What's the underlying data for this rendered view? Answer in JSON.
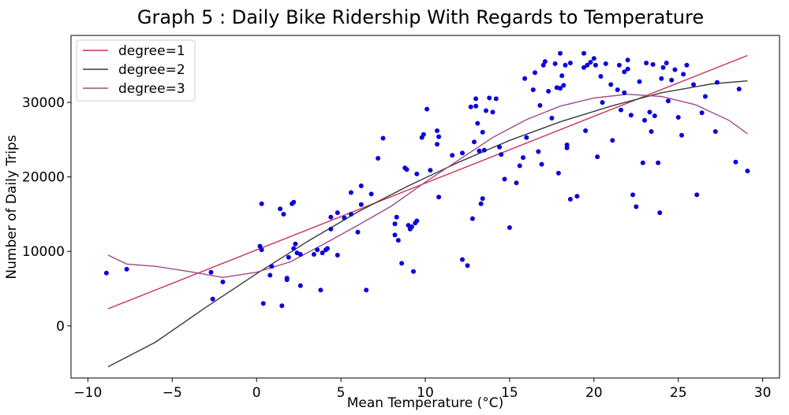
{
  "chart_data": {
    "type": "scatter",
    "title": "Graph 5 : Daily Bike Ridership With Regards to Temperature",
    "xlabel": "Mean Temperature (°C)",
    "ylabel": "Number of Daily Trips",
    "xlim": [
      -11,
      31
    ],
    "ylim": [
      -7000,
      39000
    ],
    "xticks": [
      -10,
      -5,
      0,
      5,
      10,
      15,
      20,
      25,
      30
    ],
    "yticks": [
      0,
      10000,
      20000,
      30000
    ],
    "xtick_labels": [
      "−10",
      "−5",
      "0",
      "5",
      "10",
      "15",
      "20",
      "25",
      "30"
    ],
    "ytick_labels": [
      "0",
      "10000",
      "20000",
      "30000"
    ],
    "grid": false,
    "legend_position": "top-left",
    "colors": {
      "points": "#0b00d9",
      "degree1": "#c8334f",
      "degree2": "#3a3a3a",
      "degree3": "#a04a8a"
    },
    "points": [
      [
        -8.9,
        7100
      ],
      [
        -7.7,
        7600
      ],
      [
        -2.7,
        7200
      ],
      [
        -2.6,
        3600
      ],
      [
        -2.0,
        5900
      ],
      [
        0.2,
        10700
      ],
      [
        0.3,
        16400
      ],
      [
        0.3,
        10200
      ],
      [
        0.4,
        3000
      ],
      [
        0.8,
        6800
      ],
      [
        0.9,
        8000
      ],
      [
        1.4,
        15700
      ],
      [
        1.5,
        2700
      ],
      [
        1.6,
        15000
      ],
      [
        1.8,
        6400
      ],
      [
        1.8,
        6200
      ],
      [
        1.9,
        9200
      ],
      [
        2.1,
        16400
      ],
      [
        2.2,
        16600
      ],
      [
        2.2,
        10400
      ],
      [
        2.3,
        11000
      ],
      [
        2.4,
        9800
      ],
      [
        2.6,
        5400
      ],
      [
        2.6,
        9600
      ],
      [
        3.4,
        9600
      ],
      [
        3.6,
        10200
      ],
      [
        3.8,
        4800
      ],
      [
        3.9,
        9800
      ],
      [
        4.1,
        10200
      ],
      [
        4.2,
        10400
      ],
      [
        4.4,
        13000
      ],
      [
        4.4,
        14600
      ],
      [
        4.8,
        15200
      ],
      [
        4.8,
        9500
      ],
      [
        5.2,
        14500
      ],
      [
        5.6,
        15000
      ],
      [
        5.6,
        17900
      ],
      [
        6.0,
        12600
      ],
      [
        6.2,
        18800
      ],
      [
        6.2,
        16300
      ],
      [
        6.5,
        4800
      ],
      [
        6.8,
        17700
      ],
      [
        7.2,
        22500
      ],
      [
        7.5,
        25200
      ],
      [
        8.2,
        12200
      ],
      [
        8.2,
        13700
      ],
      [
        8.3,
        14600
      ],
      [
        8.4,
        11500
      ],
      [
        8.6,
        8400
      ],
      [
        8.8,
        21200
      ],
      [
        8.9,
        21000
      ],
      [
        9.0,
        13500
      ],
      [
        9.1,
        13000
      ],
      [
        9.2,
        13300
      ],
      [
        9.3,
        7300
      ],
      [
        9.4,
        13800
      ],
      [
        9.5,
        14100
      ],
      [
        9.5,
        20400
      ],
      [
        9.8,
        25300
      ],
      [
        9.9,
        25700
      ],
      [
        10.1,
        29100
      ],
      [
        10.3,
        20900
      ],
      [
        10.7,
        24400
      ],
      [
        10.7,
        26200
      ],
      [
        10.8,
        17300
      ],
      [
        10.8,
        25400
      ],
      [
        11.6,
        22900
      ],
      [
        12.2,
        23200
      ],
      [
        12.2,
        8900
      ],
      [
        12.5,
        8100
      ],
      [
        12.7,
        29400
      ],
      [
        12.8,
        14400
      ],
      [
        12.9,
        24700
      ],
      [
        13.0,
        29500
      ],
      [
        13.0,
        30500
      ],
      [
        13.1,
        27200
      ],
      [
        13.2,
        23500
      ],
      [
        13.3,
        16400
      ],
      [
        13.4,
        17100
      ],
      [
        13.4,
        26000
      ],
      [
        13.5,
        23600
      ],
      [
        13.6,
        28900
      ],
      [
        13.8,
        30600
      ],
      [
        14.0,
        28700
      ],
      [
        14.2,
        30500
      ],
      [
        14.4,
        24000
      ],
      [
        14.5,
        23000
      ],
      [
        14.7,
        19700
      ],
      [
        15.0,
        13200
      ],
      [
        15.4,
        19200
      ],
      [
        15.6,
        21500
      ],
      [
        15.8,
        22600
      ],
      [
        15.9,
        33200
      ],
      [
        16.0,
        25300
      ],
      [
        16.4,
        31700
      ],
      [
        16.5,
        34000
      ],
      [
        16.7,
        23400
      ],
      [
        16.8,
        29600
      ],
      [
        16.9,
        21700
      ],
      [
        17.0,
        35000
      ],
      [
        17.1,
        35500
      ],
      [
        17.3,
        31500
      ],
      [
        17.5,
        27900
      ],
      [
        17.7,
        35200
      ],
      [
        17.8,
        32000
      ],
      [
        17.9,
        20500
      ],
      [
        18.0,
        31900
      ],
      [
        18.0,
        36600
      ],
      [
        18.1,
        33600
      ],
      [
        18.2,
        32300
      ],
      [
        18.3,
        35000
      ],
      [
        18.4,
        24300
      ],
      [
        18.4,
        23900
      ],
      [
        18.6,
        35300
      ],
      [
        18.6,
        17000
      ],
      [
        19.0,
        17400
      ],
      [
        19.4,
        34700
      ],
      [
        19.4,
        36600
      ],
      [
        19.5,
        26200
      ],
      [
        19.6,
        35000
      ],
      [
        19.8,
        35400
      ],
      [
        20.0,
        35900
      ],
      [
        20.1,
        35000
      ],
      [
        20.2,
        22700
      ],
      [
        20.4,
        33500
      ],
      [
        20.5,
        30000
      ],
      [
        20.7,
        35200
      ],
      [
        21.0,
        32400
      ],
      [
        21.1,
        24900
      ],
      [
        21.4,
        31700
      ],
      [
        21.5,
        35000
      ],
      [
        21.6,
        29000
      ],
      [
        21.8,
        31300
      ],
      [
        21.8,
        34100
      ],
      [
        22.0,
        35700
      ],
      [
        22.0,
        34500
      ],
      [
        22.2,
        28300
      ],
      [
        22.3,
        17600
      ],
      [
        22.5,
        16000
      ],
      [
        22.7,
        32800
      ],
      [
        22.9,
        21900
      ],
      [
        23.0,
        27600
      ],
      [
        23.1,
        35300
      ],
      [
        23.3,
        28700
      ],
      [
        23.4,
        26100
      ],
      [
        23.5,
        35100
      ],
      [
        23.6,
        28200
      ],
      [
        23.8,
        21900
      ],
      [
        23.9,
        15200
      ],
      [
        24.0,
        33200
      ],
      [
        24.1,
        34700
      ],
      [
        24.3,
        35300
      ],
      [
        24.4,
        30200
      ],
      [
        24.6,
        33000
      ],
      [
        24.8,
        34400
      ],
      [
        25.0,
        28000
      ],
      [
        25.2,
        25600
      ],
      [
        25.3,
        33800
      ],
      [
        25.5,
        35000
      ],
      [
        25.9,
        32400
      ],
      [
        26.1,
        17600
      ],
      [
        26.4,
        28600
      ],
      [
        26.6,
        30800
      ],
      [
        27.2,
        26100
      ],
      [
        27.3,
        32700
      ],
      [
        28.4,
        22000
      ],
      [
        28.6,
        31800
      ],
      [
        29.1,
        20800
      ]
    ],
    "series": [
      {
        "name": "degree=1",
        "x": [
          -8.8,
          29.1
        ],
        "y": [
          2300,
          36300
        ]
      },
      {
        "name": "degree=2",
        "x": [
          -8.8,
          -6,
          -3,
          0,
          3,
          6,
          9,
          12,
          15,
          18,
          21,
          24,
          27,
          29.1
        ],
        "y": [
          -5500,
          -2200,
          2500,
          7000,
          11300,
          15300,
          18800,
          22000,
          24900,
          27400,
          29500,
          31300,
          32500,
          32900
        ]
      },
      {
        "name": "degree=3",
        "x": [
          -8.8,
          -7.7,
          -6,
          -4,
          -2,
          0,
          2,
          4,
          6,
          8,
          10,
          12,
          14,
          16,
          18,
          20,
          22,
          24,
          26,
          28,
          29.1
        ],
        "y": [
          9500,
          8300,
          8000,
          7300,
          6500,
          7200,
          8600,
          11000,
          13500,
          16100,
          19300,
          22300,
          25300,
          27700,
          29500,
          30600,
          31100,
          30800,
          29700,
          27600,
          25800
        ]
      }
    ]
  }
}
